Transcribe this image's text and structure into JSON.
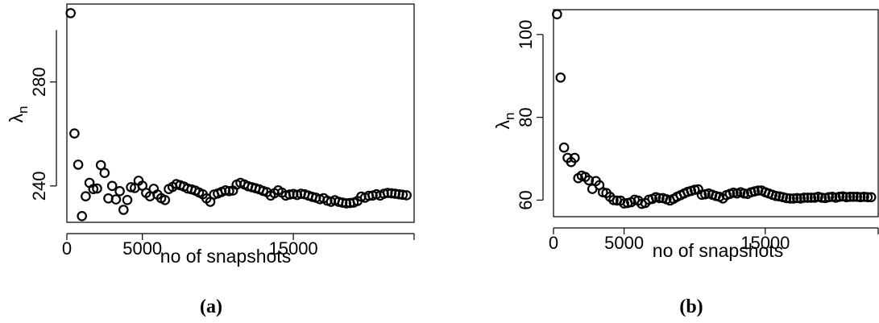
{
  "chart_data": [
    {
      "type": "scatter",
      "caption": "(a)",
      "xlabel": "no of snapshots",
      "ylabel_main": "λ",
      "ylabel_sub": "n",
      "xlim": [
        0,
        23000
      ],
      "ylim": [
        226,
        310
      ],
      "xticks": [
        0,
        5000,
        15000
      ],
      "xtick_labels": [
        "0",
        "5000",
        "15000"
      ],
      "xaxis_range": [
        0,
        23000
      ],
      "xaxis_end": 23000,
      "yticks": [
        240,
        280
      ],
      "ytick_labels": [
        "240",
        "280"
      ],
      "yaxis_range": [
        240,
        300
      ],
      "series": [
        {
          "x": [
            250,
            500,
            750,
            1000,
            1250,
            1500,
            1750,
            2000,
            2250,
            2500,
            2750,
            3000,
            3250,
            3500,
            3750,
            4000,
            4250,
            4500,
            4750,
            5000,
            5250,
            5500,
            5750,
            6000,
            6250,
            6500,
            6750,
            7000,
            7250,
            7500,
            7750,
            8000,
            8250,
            8500,
            8750,
            9000,
            9250,
            9500,
            9750,
            10000,
            10250,
            10500,
            10750,
            11000,
            11250,
            11500,
            11750,
            12000,
            12250,
            12500,
            12750,
            13000,
            13250,
            13500,
            13750,
            14000,
            14250,
            14500,
            14750,
            15000,
            15250,
            15500,
            15750,
            16000,
            16250,
            16500,
            16750,
            17000,
            17250,
            17500,
            17750,
            18000,
            18250,
            18500,
            18750,
            19000,
            19250,
            19500,
            19750,
            20000,
            20250,
            20500,
            20750,
            21000,
            21250,
            21500,
            21750,
            22000,
            22250,
            22500
          ],
          "y": [
            306.5,
            260.2,
            248.2,
            228.4,
            236.0,
            241.2,
            238.8,
            239.0,
            248.0,
            245.0,
            235.2,
            240.0,
            234.8,
            238.0,
            230.8,
            234.6,
            239.5,
            239.2,
            242.0,
            240.1,
            237.3,
            236.0,
            238.9,
            236.7,
            235.3,
            234.6,
            238.8,
            239.6,
            240.7,
            240.3,
            239.8,
            239.0,
            238.7,
            238.2,
            237.5,
            236.8,
            235.2,
            233.9,
            236.7,
            237.1,
            237.7,
            238.3,
            238.0,
            238.2,
            240.5,
            241.2,
            240.6,
            239.9,
            239.5,
            239.1,
            238.7,
            238.1,
            237.6,
            236.3,
            237.2,
            238.3,
            237.4,
            236.3,
            236.7,
            236.9,
            236.5,
            237.0,
            236.8,
            236.3,
            235.8,
            235.5,
            234.9,
            235.3,
            234.3,
            233.9,
            234.5,
            233.9,
            233.6,
            233.3,
            233.4,
            233.6,
            234.2,
            235.9,
            235.5,
            236.2,
            236.3,
            236.8,
            236.3,
            237.0,
            237.3,
            237.2,
            237.0,
            236.8,
            236.6,
            236.4
          ]
        }
      ]
    },
    {
      "type": "scatter",
      "caption": "(b)",
      "xlabel": "no of snapshots",
      "ylabel_main": "λ",
      "ylabel_sub": "n",
      "xlim": [
        0,
        23000
      ],
      "ylim": [
        56,
        106
      ],
      "xticks": [
        0,
        5000,
        15000
      ],
      "xtick_labels": [
        "0",
        "5000",
        "15000"
      ],
      "xaxis_range": [
        0,
        23000
      ],
      "xaxis_end": 23000,
      "yticks": [
        60,
        80,
        100
      ],
      "ytick_labels": [
        "60",
        "80",
        "100"
      ],
      "yaxis_range": [
        60,
        100
      ],
      "series": [
        {
          "x": [
            250,
            500,
            750,
            1000,
            1250,
            1500,
            1750,
            2000,
            2250,
            2500,
            2750,
            3000,
            3250,
            3500,
            3750,
            4000,
            4250,
            4500,
            4750,
            5000,
            5250,
            5500,
            5750,
            6000,
            6250,
            6500,
            6750,
            7000,
            7250,
            7500,
            7750,
            8000,
            8250,
            8500,
            8750,
            9000,
            9250,
            9500,
            9750,
            10000,
            10250,
            10500,
            10750,
            11000,
            11250,
            11500,
            11750,
            12000,
            12250,
            12500,
            12750,
            13000,
            13250,
            13500,
            13750,
            14000,
            14250,
            14500,
            14750,
            15000,
            15250,
            15500,
            15750,
            16000,
            16250,
            16500,
            16750,
            17000,
            17250,
            17500,
            17750,
            18000,
            18250,
            18500,
            18750,
            19000,
            19250,
            19500,
            19750,
            20000,
            20250,
            20500,
            20750,
            21000,
            21250,
            21500,
            21750,
            22000,
            22250,
            22500
          ],
          "y": [
            104.9,
            89.6,
            72.7,
            70.2,
            69.2,
            70.2,
            65.3,
            65.9,
            65.6,
            64.8,
            62.7,
            64.6,
            63.6,
            61.9,
            61.7,
            60.8,
            60.0,
            59.9,
            59.9,
            59.2,
            59.3,
            59.5,
            60.1,
            59.9,
            59.1,
            59.3,
            60.1,
            60.3,
            60.7,
            60.5,
            60.5,
            60.2,
            59.9,
            60.3,
            60.8,
            61.2,
            61.6,
            62.0,
            62.2,
            62.5,
            62.6,
            61.3,
            61.4,
            61.6,
            61.3,
            61.0,
            60.8,
            60.4,
            61.2,
            61.5,
            61.8,
            61.6,
            61.9,
            61.6,
            61.5,
            61.9,
            62.1,
            62.3,
            62.3,
            61.9,
            61.6,
            61.3,
            61.0,
            60.9,
            60.7,
            60.5,
            60.4,
            60.4,
            60.5,
            60.4,
            60.6,
            60.6,
            60.6,
            60.6,
            60.8,
            60.6,
            60.5,
            60.7,
            60.8,
            60.6,
            60.8,
            60.9,
            60.7,
            60.8,
            60.8,
            60.8,
            60.7,
            60.8,
            60.7,
            60.7
          ]
        }
      ]
    }
  ]
}
